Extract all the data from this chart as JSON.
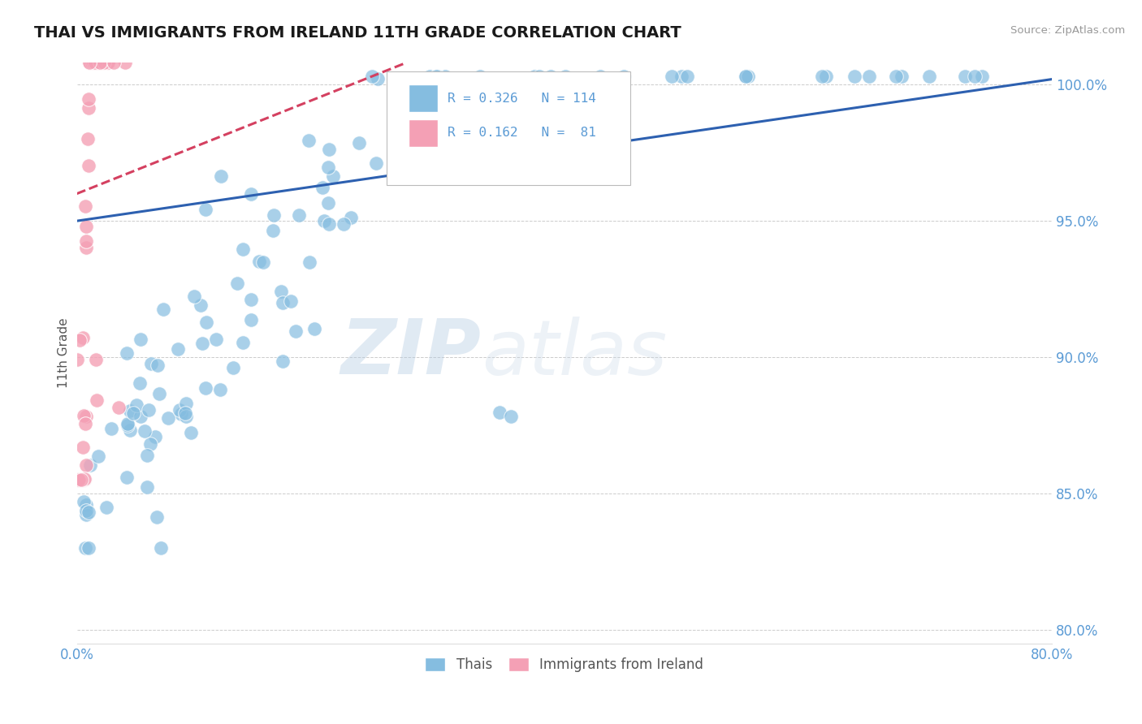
{
  "title": "THAI VS IMMIGRANTS FROM IRELAND 11TH GRADE CORRELATION CHART",
  "source": "Source: ZipAtlas.com",
  "ylabel": "11th Grade",
  "xlim": [
    0.0,
    0.8
  ],
  "ylim": [
    0.795,
    1.008
  ],
  "ytick_vals": [
    0.8,
    0.85,
    0.9,
    0.95,
    1.0
  ],
  "ytick_labels": [
    "80.0%",
    "85.0%",
    "90.0%",
    "95.0%",
    "100.0%"
  ],
  "xtick_vals": [
    0.0,
    0.1,
    0.2,
    0.3,
    0.4,
    0.5,
    0.6,
    0.7,
    0.8
  ],
  "xtick_labels": [
    "0.0%",
    "",
    "",
    "",
    "",
    "",
    "",
    "",
    "80.0%"
  ],
  "blue_color": "#85bde0",
  "pink_color": "#f4a0b5",
  "trend_blue": "#2d60b0",
  "trend_pink": "#d44060",
  "R_blue": 0.326,
  "N_blue": 114,
  "R_pink": 0.162,
  "N_pink": 81,
  "watermark_zip": "ZIP",
  "watermark_atlas": "atlas",
  "legend_label_blue": "Thais",
  "legend_label_pink": "Immigrants from Ireland",
  "title_color": "#1a1a1a",
  "axis_color": "#5b9bd5",
  "grid_color": "#cccccc",
  "background_color": "#ffffff"
}
